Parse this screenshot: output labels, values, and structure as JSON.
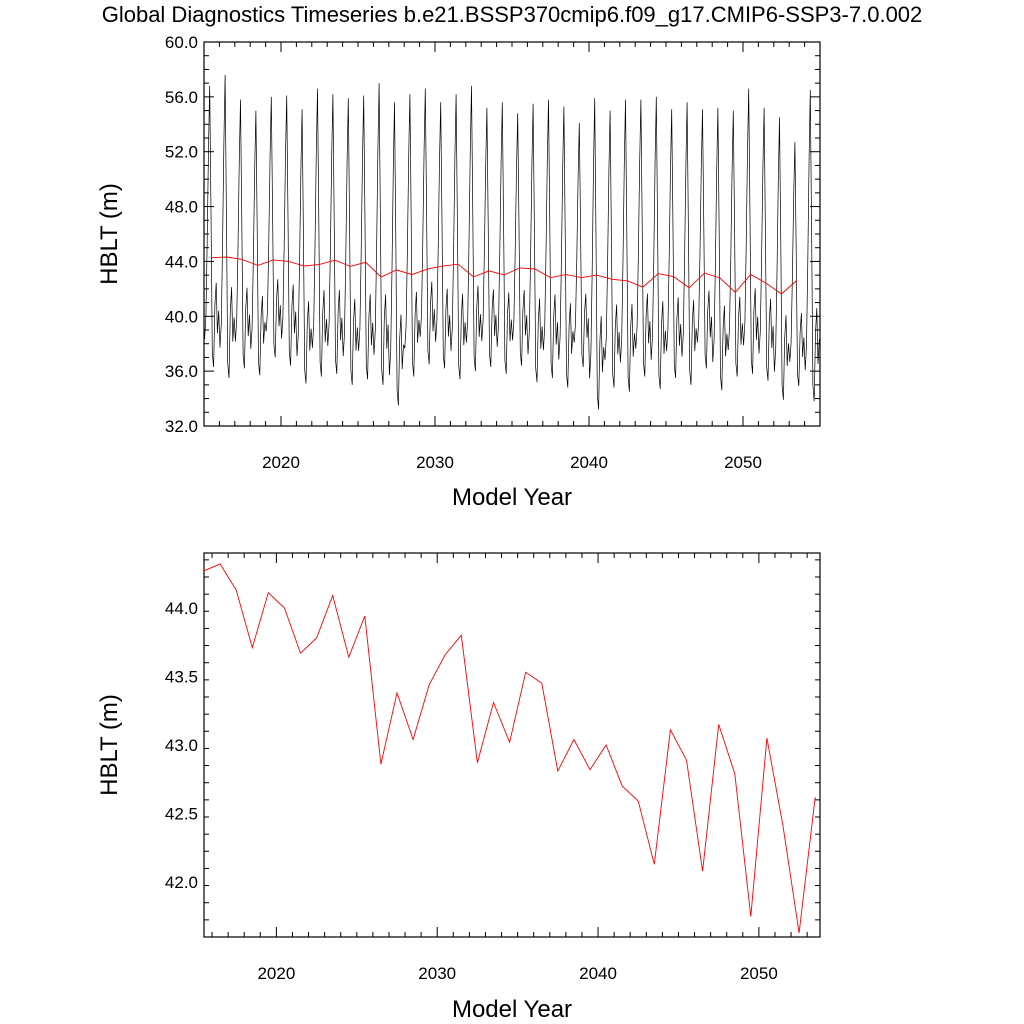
{
  "figure_title": "Global Diagnostics Timeseries b.e21.BSSP370cmip6.f09_g17.CMIP6-SSP3-7.0.002",
  "colors": {
    "monthly": "#000000",
    "annual": "#ff0000",
    "axes": "#000000"
  },
  "chart_data": [
    {
      "type": "line",
      "title": "Global Diagnostics Timeseries b.e21.BSSP370cmip6.f09_g17.CMIP6-SSP3-7.0.002",
      "xlabel": "Model Year",
      "ylabel": "HBLT (m)",
      "xlim": [
        2015,
        2055
      ],
      "ylim": [
        32.0,
        60.0
      ],
      "xticks": [
        "2020",
        "2030",
        "2040",
        "2050"
      ],
      "xtick_values": [
        2020,
        2030,
        2040,
        2050
      ],
      "yticks": [
        "32.0",
        "36.0",
        "40.0",
        "44.0",
        "48.0",
        "52.0",
        "56.0",
        "60.0"
      ],
      "ytick_values": [
        32,
        36,
        40,
        44,
        48,
        52,
        56,
        60
      ],
      "grid": false,
      "series": [
        {
          "kind": "monthly",
          "color": "#000000",
          "x_start": 2015.04,
          "x_step": 0.0833333,
          "monthly_max": [
            56.8,
            57.6,
            55.8,
            55.0,
            56.0,
            56.1,
            55.1,
            56.6,
            56.2,
            55.9,
            56.1,
            57.0,
            55.6,
            56.2,
            56.6,
            55.6,
            56.2,
            56.8,
            55.2,
            55.6,
            54.8,
            55.5,
            55.8,
            55.3,
            54.1,
            55.9,
            55.0,
            55.8,
            55.8,
            56.0,
            55.1,
            55.6,
            55.1,
            55.2,
            55.0,
            56.6,
            55.2,
            54.5,
            52.7,
            56.5
          ],
          "monthly_min": [
            36.3,
            35.5,
            36.2,
            35.7,
            37.0,
            36.4,
            35.1,
            35.6,
            35.8,
            35.0,
            35.4,
            35.0,
            33.5,
            35.6,
            36.5,
            36.2,
            35.4,
            36.0,
            36.3,
            35.8,
            36.4,
            35.2,
            35.5,
            34.8,
            36.3,
            33.2,
            34.8,
            34.5,
            35.6,
            34.7,
            35.5,
            35.0,
            36.2,
            34.6,
            35.6,
            35.8,
            35.3,
            33.9,
            34.9,
            33.8
          ]
        },
        {
          "kind": "annual",
          "color": "#ff0000",
          "x": [
            2015.5,
            2016.5,
            2017.5,
            2018.5,
            2019.5,
            2020.5,
            2021.5,
            2022.5,
            2023.5,
            2024.5,
            2025.5,
            2026.5,
            2027.5,
            2028.5,
            2029.5,
            2030.5,
            2031.5,
            2032.5,
            2033.5,
            2034.5,
            2035.5,
            2036.5,
            2037.5,
            2038.5,
            2039.5,
            2040.5,
            2041.5,
            2042.5,
            2043.5,
            2044.5,
            2045.5,
            2046.5,
            2047.5,
            2048.5,
            2049.5,
            2050.5,
            2051.5,
            2052.5,
            2053.5
          ],
          "values": [
            44.27,
            44.32,
            44.13,
            43.71,
            44.11,
            44.0,
            43.67,
            43.78,
            44.09,
            43.64,
            43.94,
            42.86,
            43.38,
            43.04,
            43.44,
            43.66,
            43.8,
            42.87,
            43.31,
            43.02,
            43.53,
            43.45,
            42.81,
            43.04,
            42.82,
            43.0,
            42.7,
            42.59,
            42.13,
            43.11,
            42.89,
            42.08,
            43.15,
            42.79,
            41.75,
            43.05,
            42.41,
            41.63,
            42.62
          ]
        }
      ]
    },
    {
      "type": "line",
      "title": "",
      "xlabel": "Model Year",
      "ylabel": "HBLT (m)",
      "xlim": [
        2015.5,
        2053.8
      ],
      "ylim": [
        41.6,
        44.4
      ],
      "xticks": [
        "2020",
        "2030",
        "2040",
        "2050"
      ],
      "xtick_values": [
        2020,
        2030,
        2040,
        2050
      ],
      "yticks": [
        "42.0",
        "42.5",
        "43.0",
        "43.5",
        "44.0"
      ],
      "ytick_values": [
        42.0,
        42.5,
        43.0,
        43.5,
        44.0
      ],
      "grid": false,
      "series": [
        {
          "kind": "annual",
          "color": "#ff0000",
          "x": [
            2015.5,
            2016.5,
            2017.5,
            2018.5,
            2019.5,
            2020.5,
            2021.5,
            2022.5,
            2023.5,
            2024.5,
            2025.5,
            2026.5,
            2027.5,
            2028.5,
            2029.5,
            2030.5,
            2031.5,
            2032.5,
            2033.5,
            2034.5,
            2035.5,
            2036.5,
            2037.5,
            2038.5,
            2039.5,
            2040.5,
            2041.5,
            2042.5,
            2043.5,
            2044.5,
            2045.5,
            2046.5,
            2047.5,
            2048.5,
            2049.5,
            2050.5,
            2051.5,
            2052.5,
            2053.5
          ],
          "values": [
            44.27,
            44.32,
            44.13,
            43.71,
            44.11,
            44.0,
            43.67,
            43.78,
            44.09,
            43.64,
            43.94,
            42.86,
            43.38,
            43.04,
            43.44,
            43.66,
            43.8,
            42.87,
            43.31,
            43.02,
            43.53,
            43.45,
            42.81,
            43.04,
            42.82,
            43.0,
            42.7,
            42.59,
            42.13,
            43.11,
            42.89,
            42.08,
            43.15,
            42.79,
            41.75,
            43.05,
            42.41,
            41.63,
            42.62
          ]
        }
      ]
    }
  ]
}
